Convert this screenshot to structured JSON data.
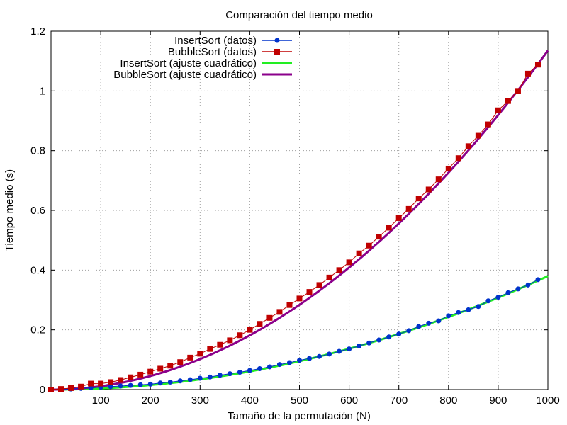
{
  "chart_data": {
    "type": "line",
    "title": "Comparación del tiempo medio",
    "xlabel": "Tamaño de la permutación (N)",
    "ylabel": "Tiempo medio (s)",
    "xlim": [
      0,
      1000
    ],
    "ylim": [
      0,
      1.2
    ],
    "xticks": [
      100,
      200,
      300,
      400,
      500,
      600,
      700,
      800,
      900,
      1000
    ],
    "yticks": [
      0,
      0.2,
      0.4,
      0.6,
      0.8,
      1,
      1.2
    ],
    "xtick_labels": [
      "100",
      "200",
      "300",
      "400",
      "500",
      "600",
      "700",
      "800",
      "900",
      "1000"
    ],
    "ytick_labels": [
      "0",
      "0.2",
      "0.4",
      "0.6",
      "0.8",
      "1",
      "1.2"
    ],
    "grid": true,
    "legend_position": "top-left",
    "series": [
      {
        "name": "InsertSort (datos)",
        "kind": "points",
        "color": "#0033cc",
        "marker": "circle",
        "x": [
          0,
          20,
          40,
          60,
          80,
          100,
          120,
          140,
          160,
          180,
          200,
          220,
          240,
          260,
          280,
          300,
          320,
          340,
          360,
          380,
          400,
          420,
          440,
          460,
          480,
          500,
          520,
          540,
          560,
          580,
          600,
          620,
          640,
          660,
          680,
          700,
          720,
          740,
          760,
          780,
          800,
          820,
          840,
          860,
          880,
          900,
          920,
          940,
          960,
          980
        ],
        "y": [
          0.0,
          0.0,
          0.002,
          0.004,
          0.006,
          0.008,
          0.01,
          0.012,
          0.014,
          0.016,
          0.018,
          0.022,
          0.025,
          0.029,
          0.033,
          0.038,
          0.042,
          0.048,
          0.053,
          0.058,
          0.064,
          0.07,
          0.076,
          0.084,
          0.09,
          0.098,
          0.104,
          0.111,
          0.119,
          0.128,
          0.136,
          0.146,
          0.156,
          0.166,
          0.176,
          0.186,
          0.197,
          0.211,
          0.222,
          0.23,
          0.247,
          0.258,
          0.267,
          0.278,
          0.297,
          0.309,
          0.324,
          0.337,
          0.35,
          0.368
        ]
      },
      {
        "name": "BubbleSort (datos)",
        "kind": "points",
        "color": "#c00000",
        "marker": "square",
        "x": [
          0,
          20,
          40,
          60,
          80,
          100,
          120,
          140,
          160,
          180,
          200,
          220,
          240,
          260,
          280,
          300,
          320,
          340,
          360,
          380,
          400,
          420,
          440,
          460,
          480,
          500,
          520,
          540,
          560,
          580,
          600,
          620,
          640,
          660,
          680,
          700,
          720,
          740,
          760,
          780,
          800,
          820,
          840,
          860,
          880,
          900,
          920,
          940,
          960,
          980
        ],
        "y": [
          0.0,
          0.002,
          0.005,
          0.01,
          0.02,
          0.02,
          0.025,
          0.032,
          0.041,
          0.05,
          0.06,
          0.07,
          0.08,
          0.092,
          0.107,
          0.12,
          0.136,
          0.15,
          0.165,
          0.182,
          0.2,
          0.22,
          0.24,
          0.26,
          0.283,
          0.305,
          0.327,
          0.35,
          0.375,
          0.4,
          0.426,
          0.456,
          0.482,
          0.512,
          0.542,
          0.574,
          0.605,
          0.64,
          0.67,
          0.704,
          0.74,
          0.775,
          0.815,
          0.85,
          0.888,
          0.935,
          0.966,
          1.0,
          1.058,
          1.088
        ]
      },
      {
        "name": "InsertSort (ajuste cuadrático)",
        "kind": "curve",
        "color": "#22ee22",
        "coeffs": [
          0,
          0,
          3.8e-07
        ]
      },
      {
        "name": "BubbleSort (ajuste cuadrático)",
        "kind": "curve",
        "color": "#8b008b",
        "coeffs": [
          0,
          0,
          1.135e-06
        ]
      }
    ]
  }
}
